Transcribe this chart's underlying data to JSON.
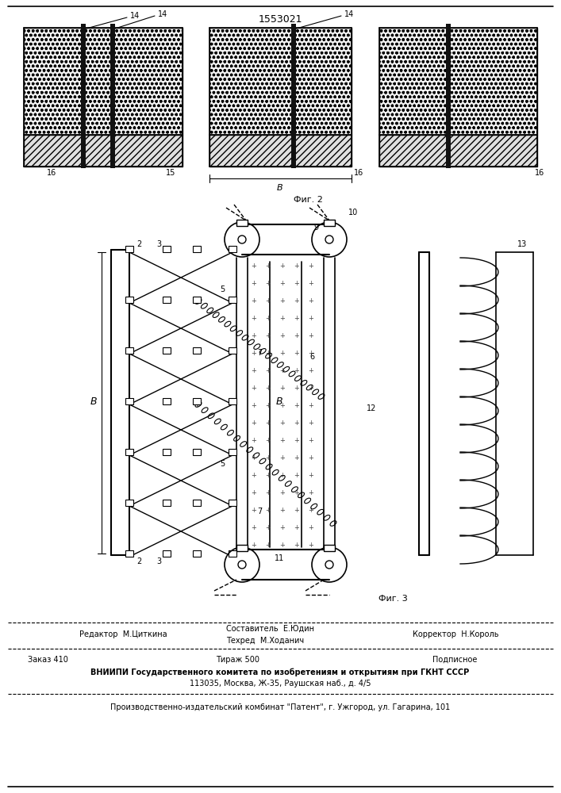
{
  "patent_number": "1553021",
  "fig2_label": "Фиг. 2",
  "fig3_label": "Фиг. 3",
  "editor_line": "Редактор  М.Циткина",
  "composer_line": "Составитель  Е.Юдин",
  "techred_line": "Техред  М.Ходанич",
  "corrector_line": "Корректор  Н.Король",
  "zakaz_line": "Заказ 410",
  "tirazh_line": "Тираж 500",
  "podpisnoe_line": "Подписное",
  "vnipi_line": "ВНИИПИ Государственного комитета по изобретениям и открытиям при ГКНТ СССР",
  "address_line": "113035, Москва, Ж-35, Раушская наб., д. 4/5",
  "publisher_line": "Производственно-издательский комбинат \"Патент\", г. Ужгород, ул. Гагарина, 101",
  "bg_color": "#ffffff",
  "line_color": "#000000"
}
